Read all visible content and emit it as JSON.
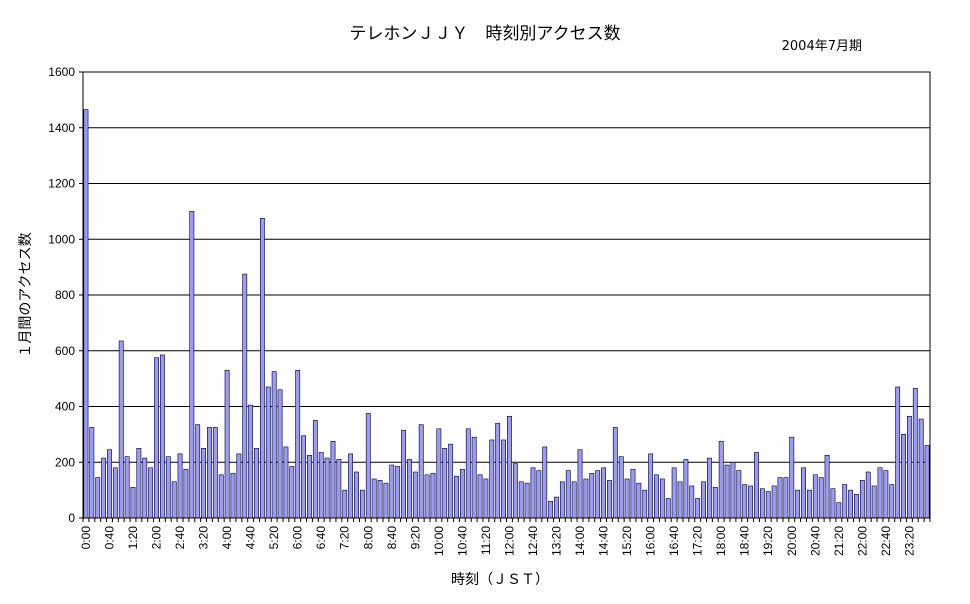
{
  "chart_data": {
    "type": "bar",
    "title": "テレホンＪＪＹ　時刻別アクセス数",
    "subtitle": "2004年7月期",
    "xlabel": "時刻（ＪＳＴ）",
    "ylabel": "１月間のアクセス数",
    "ylim": [
      0,
      1600
    ],
    "yticks": [
      0,
      200,
      400,
      600,
      800,
      1000,
      1200,
      1400,
      1600
    ],
    "grid": true,
    "legend": "none",
    "x_tick_labels": [
      "0:00",
      "0:40",
      "1:20",
      "2:00",
      "2:40",
      "3:20",
      "4:00",
      "4:40",
      "5:20",
      "6:00",
      "6:40",
      "7:20",
      "8:00",
      "8:40",
      "9:20",
      "10:00",
      "10:40",
      "11:20",
      "12:00",
      "12:40",
      "13:20",
      "14:00",
      "14:40",
      "15:20",
      "16:00",
      "16:40",
      "17:20",
      "18:00",
      "18:40",
      "19:20",
      "20:00",
      "20:40",
      "21:20",
      "22:00",
      "22:40",
      "23:20"
    ],
    "x_tick_every": 4,
    "interval_minutes": 10,
    "series": [
      {
        "color": "#9999ff",
        "values": [
          1465,
          325,
          145,
          215,
          245,
          180,
          635,
          220,
          110,
          250,
          215,
          180,
          575,
          585,
          220,
          130,
          230,
          175,
          1100,
          335,
          250,
          325,
          325,
          155,
          530,
          160,
          230,
          875,
          405,
          250,
          1075,
          470,
          525,
          460,
          255,
          185,
          530,
          295,
          225,
          350,
          235,
          215,
          275,
          210,
          100,
          230,
          165,
          100,
          375,
          140,
          135,
          125,
          190,
          185,
          315,
          210,
          165,
          335,
          155,
          160,
          320,
          250,
          265,
          150,
          175,
          320,
          290,
          155,
          140,
          280,
          340,
          280,
          365,
          195,
          130,
          125,
          180,
          170,
          255,
          60,
          75,
          130,
          170,
          130,
          245,
          140,
          160,
          170,
          180,
          135,
          325,
          220,
          140,
          175,
          125,
          100,
          230,
          155,
          140,
          70,
          180,
          130,
          210,
          115,
          70,
          130,
          215,
          110,
          275,
          190,
          200,
          170,
          120,
          115,
          235,
          105,
          95,
          115,
          145,
          145,
          290,
          100,
          180,
          100,
          155,
          145,
          225,
          105,
          55,
          120,
          100,
          85,
          135,
          165,
          115,
          180,
          170,
          120,
          470,
          300,
          365,
          465,
          355,
          260
        ]
      }
    ]
  }
}
